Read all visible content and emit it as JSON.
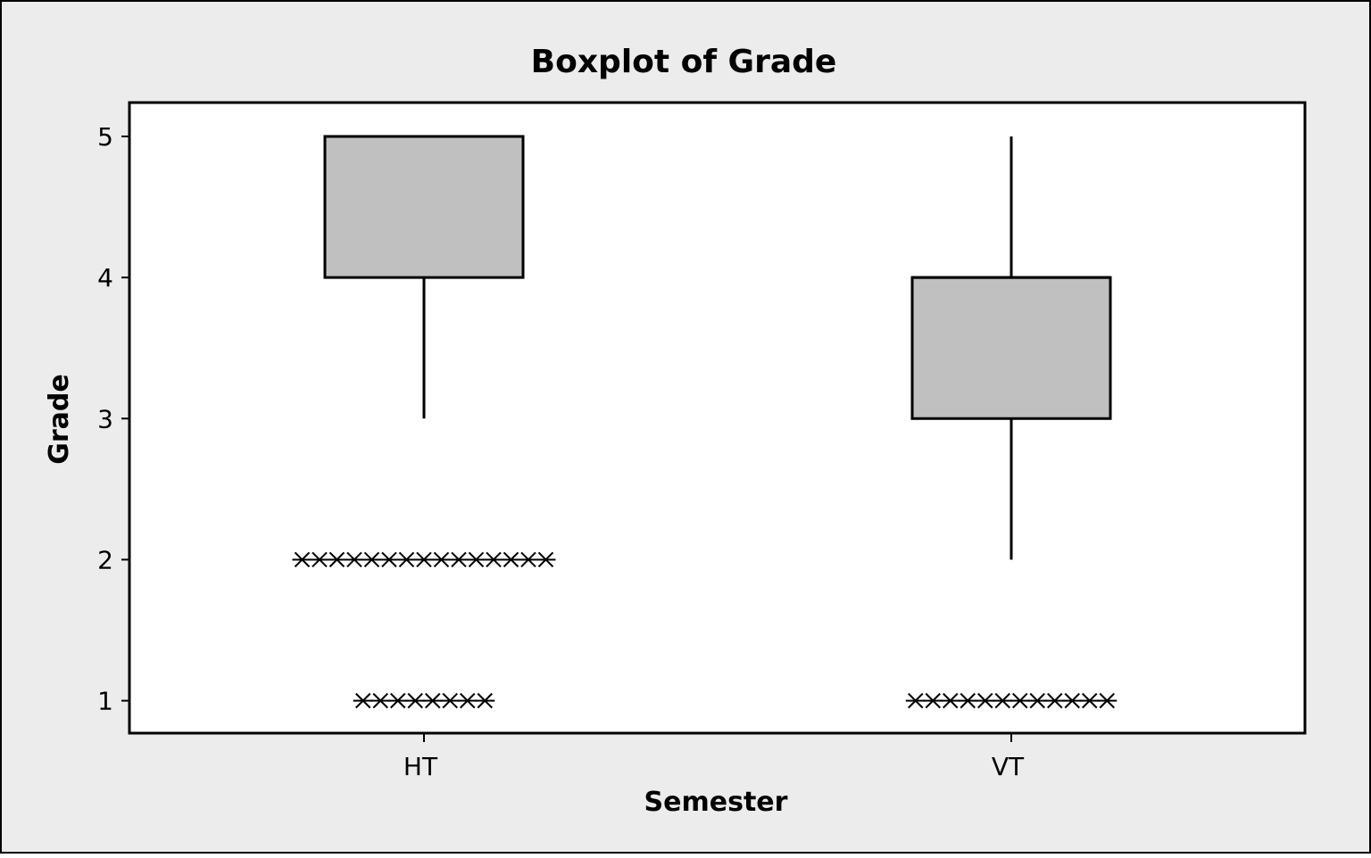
{
  "chart_data": {
    "type": "boxplot",
    "title": "Boxplot of Grade",
    "xlabel": "Semester",
    "ylabel": "Grade",
    "ylim": [
      0.77,
      5.24
    ],
    "yticks": [
      1,
      2,
      3,
      4,
      5
    ],
    "categories": [
      "HT",
      "VT"
    ],
    "boxes": [
      {
        "category": "HT",
        "whisker_low": 3,
        "q1": 4,
        "median": 5,
        "q3": 5,
        "whisker_high": 5,
        "outliers": [
          {
            "value": 2,
            "count": 15
          },
          {
            "value": 1,
            "count": 8
          }
        ]
      },
      {
        "category": "VT",
        "whisker_low": 2,
        "q1": 3,
        "median": 4,
        "q3": 4,
        "whisker_high": 5,
        "outliers": [
          {
            "value": 1,
            "count": 12
          }
        ]
      }
    ],
    "grid": false,
    "legend": "none"
  },
  "colors": {
    "background": "#ececec",
    "plot_area": "#ffffff",
    "box_fill": "#c0c0c0",
    "line": "#000000"
  }
}
